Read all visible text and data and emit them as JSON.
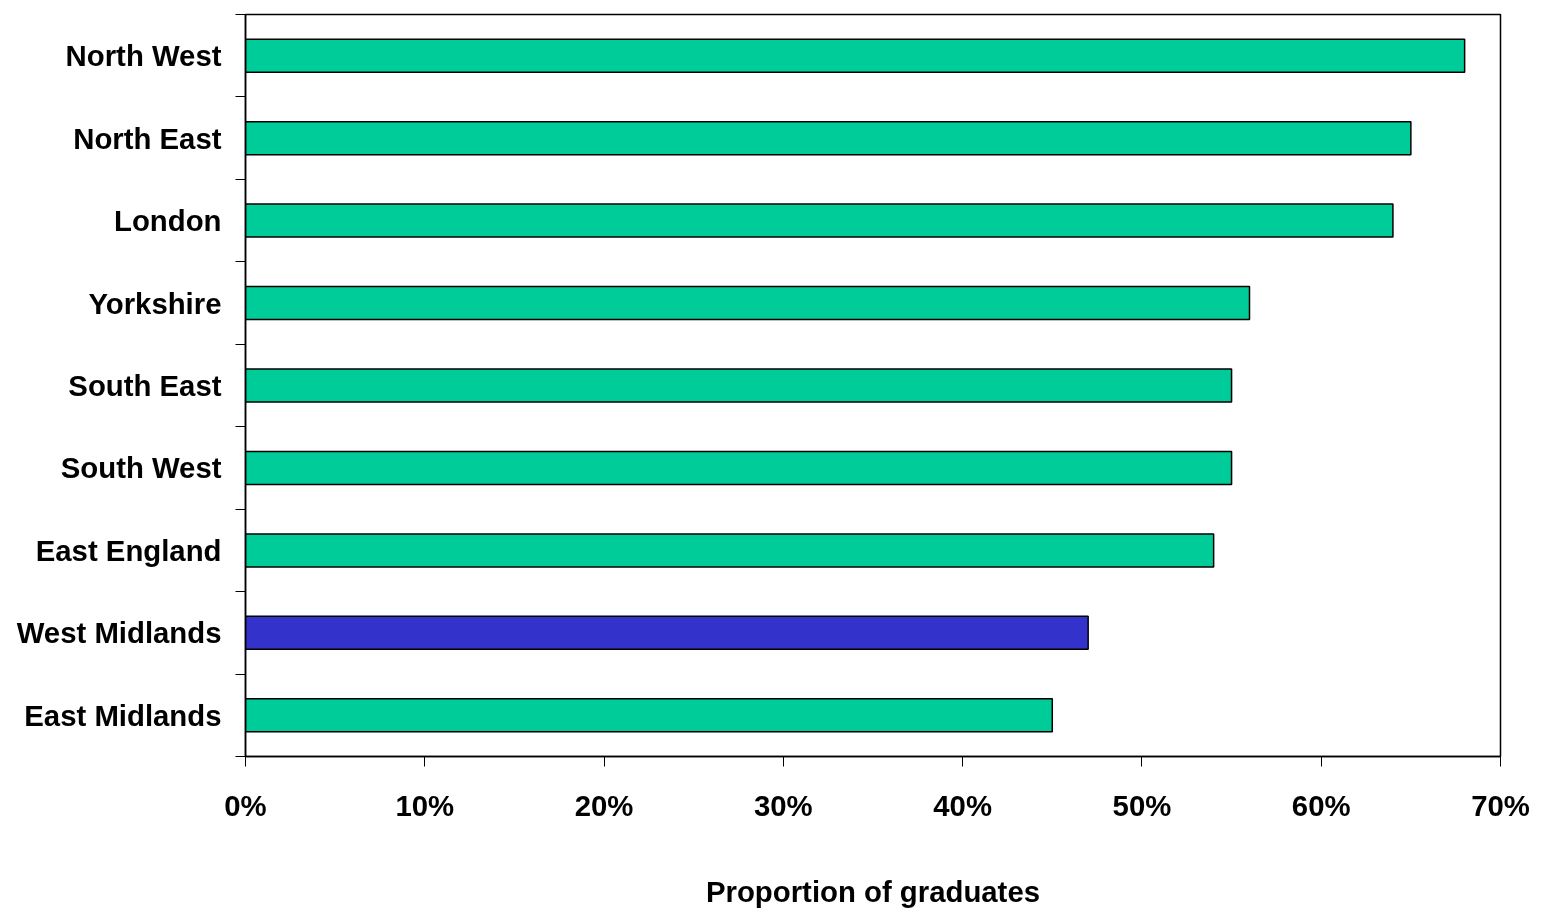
{
  "chart_data": {
    "type": "bar",
    "orientation": "horizontal",
    "xlabel": "Proportion of graduates",
    "categories": [
      "North West",
      "North East",
      "London",
      "Yorkshire",
      "South East",
      "South West",
      "East England",
      "West Midlands",
      "East Midlands"
    ],
    "values": [
      68,
      65,
      64,
      56,
      55,
      55,
      54,
      47,
      45
    ],
    "colors": [
      "#00cc99",
      "#00cc99",
      "#00cc99",
      "#00cc99",
      "#00cc99",
      "#00cc99",
      "#00cc99",
      "#3333cc",
      "#00cc99"
    ],
    "xlim": [
      0,
      70
    ],
    "xticks": [
      {
        "value": 0,
        "label": "0%"
      },
      {
        "value": 10,
        "label": "10%"
      },
      {
        "value": 20,
        "label": "20%"
      },
      {
        "value": 30,
        "label": "30%"
      },
      {
        "value": 40,
        "label": "40%"
      },
      {
        "value": 50,
        "label": "50%"
      },
      {
        "value": 60,
        "label": "60%"
      },
      {
        "value": 70,
        "label": "70%"
      }
    ],
    "grid": false
  }
}
